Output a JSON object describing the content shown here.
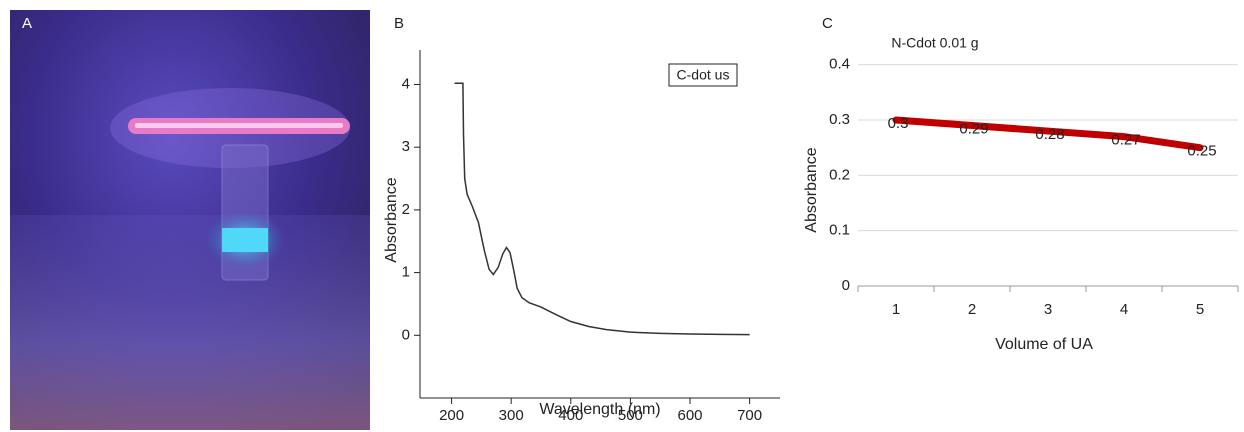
{
  "panel_labels": [
    "A",
    "B",
    "C"
  ],
  "chart_data": [
    {
      "type": "line",
      "annotation": "C-dot us",
      "x_label": "Wavelength (nm)",
      "y_label": "Absorbance",
      "x": [
        205,
        219,
        220,
        222,
        226,
        235,
        245,
        255,
        263,
        270,
        278,
        286,
        292,
        298,
        304,
        310,
        318,
        330,
        350,
        375,
        400,
        430,
        460,
        500,
        550,
        600,
        650,
        700
      ],
      "values": [
        4.02,
        4.02,
        3.2,
        2.5,
        2.25,
        2.05,
        1.8,
        1.35,
        1.05,
        0.97,
        1.08,
        1.3,
        1.4,
        1.32,
        1.05,
        0.75,
        0.6,
        0.52,
        0.45,
        0.33,
        0.22,
        0.14,
        0.09,
        0.05,
        0.03,
        0.02,
        0.015,
        0.01
      ],
      "color": "#333333",
      "xlim": [
        147,
        751
      ],
      "xticks": [
        200,
        300,
        400,
        500,
        600,
        700
      ],
      "ylim": [
        -1,
        4.55
      ],
      "yticks": [
        0,
        1,
        2,
        3,
        4
      ]
    },
    {
      "type": "line",
      "title": "N-Cdot 0.01 g",
      "x_label": "Volume of UA",
      "y_label": "Absorbance",
      "categories": [
        "1",
        "2",
        "3",
        "4",
        "5"
      ],
      "values": [
        0.3,
        0.29,
        0.28,
        0.27,
        0.25
      ],
      "color": "#c00000",
      "ylim": [
        0,
        0.45
      ],
      "yticks": [
        0,
        0.1,
        0.2,
        0.3,
        0.4
      ],
      "grid": true
    }
  ]
}
